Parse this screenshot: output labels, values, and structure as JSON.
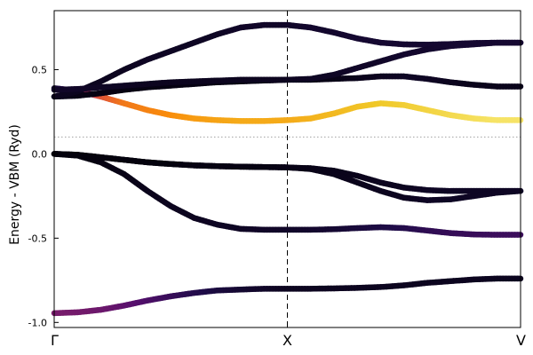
{
  "chart_data": {
    "type": "line",
    "title": "",
    "xlabel": "",
    "ylabel": "Energy - VBM (Ryd)",
    "ylim": [
      -1.03,
      0.85
    ],
    "xlim": [
      0,
      2
    ],
    "x_tick_positions": [
      0,
      1,
      2
    ],
    "x_tick_labels": [
      "Γ",
      "X",
      "V"
    ],
    "y_ticks": [
      -1.0,
      -0.5,
      0.0,
      0.5
    ],
    "y_tick_labels": [
      "-1.0",
      "-0.5",
      "0.0",
      "0.5"
    ],
    "vertical_lines_at": [
      1
    ],
    "horizontal_reference_line_y": 0.1,
    "grid": false,
    "legend": "none",
    "colormap": "inferno",
    "x": [
      0,
      0.1,
      0.2,
      0.3,
      0.4,
      0.5,
      0.6,
      0.7,
      0.8,
      0.9,
      1.0,
      1.1,
      1.2,
      1.3,
      1.4,
      1.5,
      1.6,
      1.7,
      1.8,
      1.9,
      2.0
    ],
    "series": [
      {
        "values": [
          -0.945,
          -0.94,
          -0.925,
          -0.9,
          -0.87,
          -0.845,
          -0.825,
          -0.81,
          -0.805,
          -0.8,
          -0.8,
          -0.8,
          -0.798,
          -0.795,
          -0.79,
          -0.78,
          -0.765,
          -0.755,
          -0.745,
          -0.74,
          -0.74
        ],
        "weights": [
          0.4,
          0.39,
          0.37,
          0.33,
          0.28,
          0.22,
          0.17,
          0.13,
          0.1,
          0.08,
          0.06,
          0.06,
          0.06,
          0.06,
          0.06,
          0.06,
          0.06,
          0.06,
          0.06,
          0.06,
          0.06
        ]
      },
      {
        "values": [
          0.0,
          -0.01,
          -0.05,
          -0.12,
          -0.22,
          -0.31,
          -0.38,
          -0.42,
          -0.445,
          -0.45,
          -0.45,
          -0.45,
          -0.447,
          -0.44,
          -0.435,
          -0.44,
          -0.455,
          -0.47,
          -0.478,
          -0.48,
          -0.48
        ],
        "weights": [
          0.02,
          0.02,
          0.03,
          0.04,
          0.05,
          0.06,
          0.06,
          0.07,
          0.07,
          0.08,
          0.08,
          0.09,
          0.1,
          0.12,
          0.14,
          0.16,
          0.19,
          0.21,
          0.22,
          0.23,
          0.23
        ]
      },
      {
        "values": [
          0.0,
          -0.005,
          -0.02,
          -0.035,
          -0.05,
          -0.06,
          -0.068,
          -0.073,
          -0.076,
          -0.078,
          -0.08,
          -0.085,
          -0.1,
          -0.13,
          -0.17,
          -0.2,
          -0.215,
          -0.22,
          -0.22,
          -0.22,
          -0.22
        ],
        "weights": [
          0.02,
          0.02,
          0.02,
          0.02,
          0.02,
          0.02,
          0.03,
          0.03,
          0.03,
          0.03,
          0.04,
          0.04,
          0.05,
          0.05,
          0.06,
          0.06,
          0.07,
          0.07,
          0.07,
          0.07,
          0.07
        ]
      },
      {
        "values": [
          0.0,
          -0.005,
          -0.02,
          -0.035,
          -0.05,
          -0.06,
          -0.068,
          -0.073,
          -0.076,
          -0.078,
          -0.08,
          -0.09,
          -0.12,
          -0.17,
          -0.22,
          -0.26,
          -0.275,
          -0.27,
          -0.25,
          -0.23,
          -0.22
        ],
        "weights": [
          0.02,
          0.02,
          0.02,
          0.02,
          0.02,
          0.02,
          0.03,
          0.03,
          0.03,
          0.03,
          0.04,
          0.04,
          0.05,
          0.05,
          0.06,
          0.06,
          0.07,
          0.07,
          0.07,
          0.07,
          0.07
        ]
      },
      {
        "values": [
          0.39,
          0.375,
          0.34,
          0.3,
          0.26,
          0.23,
          0.21,
          0.2,
          0.195,
          0.195,
          0.2,
          0.21,
          0.24,
          0.28,
          0.3,
          0.29,
          0.26,
          0.23,
          0.21,
          0.2,
          0.2
        ],
        "weights": [
          0.05,
          0.4,
          0.7,
          0.78,
          0.8,
          0.82,
          0.84,
          0.85,
          0.86,
          0.86,
          0.86,
          0.87,
          0.88,
          0.89,
          0.9,
          0.91,
          0.92,
          0.93,
          0.94,
          0.95,
          0.95
        ]
      },
      {
        "values": [
          0.34,
          0.345,
          0.36,
          0.38,
          0.395,
          0.405,
          0.415,
          0.425,
          0.43,
          0.435,
          0.44,
          0.44,
          0.445,
          0.45,
          0.46,
          0.46,
          0.445,
          0.425,
          0.41,
          0.4,
          0.4
        ],
        "weights": [
          0.05,
          0.04,
          0.03,
          0.03,
          0.03,
          0.03,
          0.03,
          0.03,
          0.03,
          0.03,
          0.03,
          0.03,
          0.04,
          0.05,
          0.06,
          0.07,
          0.07,
          0.06,
          0.05,
          0.05,
          0.05
        ]
      },
      {
        "values": [
          0.34,
          0.37,
          0.43,
          0.5,
          0.56,
          0.61,
          0.66,
          0.71,
          0.75,
          0.765,
          0.765,
          0.75,
          0.72,
          0.685,
          0.66,
          0.65,
          0.648,
          0.652,
          0.658,
          0.66,
          0.66
        ],
        "weights": [
          0.06,
          0.06,
          0.06,
          0.06,
          0.07,
          0.07,
          0.07,
          0.07,
          0.08,
          0.08,
          0.08,
          0.09,
          0.09,
          0.1,
          0.1,
          0.1,
          0.1,
          0.1,
          0.1,
          0.1,
          0.1
        ]
      },
      {
        "values": [
          0.38,
          0.385,
          0.395,
          0.405,
          0.415,
          0.425,
          0.43,
          0.435,
          0.44,
          0.44,
          0.44,
          0.445,
          0.47,
          0.51,
          0.55,
          0.59,
          0.62,
          0.64,
          0.65,
          0.66,
          0.66
        ],
        "weights": [
          0.08,
          0.08,
          0.07,
          0.07,
          0.06,
          0.06,
          0.06,
          0.06,
          0.06,
          0.06,
          0.06,
          0.07,
          0.07,
          0.08,
          0.08,
          0.09,
          0.09,
          0.1,
          0.1,
          0.1,
          0.1
        ]
      }
    ]
  }
}
